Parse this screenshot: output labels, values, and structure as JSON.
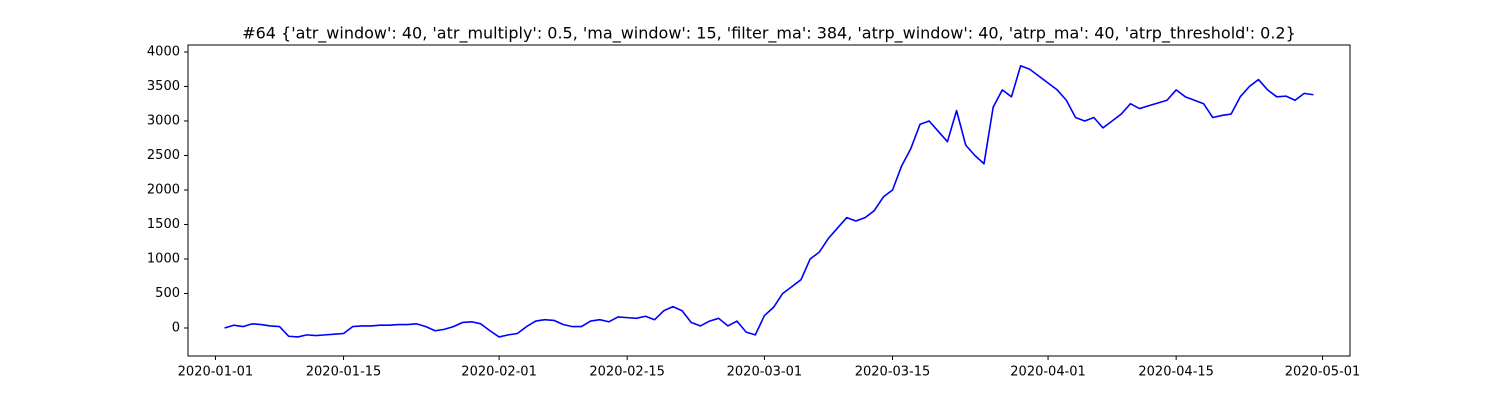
{
  "chart_data": {
    "type": "line",
    "title": "#64 {'atr_window': 40, 'atr_multiply': 0.5, 'ma_window': 15, 'filter_ma': 384, 'atrp_window': 40, 'atrp_ma': 40, 'atrp_threshold': 0.2}",
    "color": "#0000ff",
    "x": [
      "2020-01-02",
      "2020-01-03",
      "2020-01-04",
      "2020-01-05",
      "2020-01-06",
      "2020-01-07",
      "2020-01-08",
      "2020-01-09",
      "2020-01-10",
      "2020-01-11",
      "2020-01-12",
      "2020-01-13",
      "2020-01-14",
      "2020-01-15",
      "2020-01-16",
      "2020-01-17",
      "2020-01-18",
      "2020-01-19",
      "2020-01-20",
      "2020-01-21",
      "2020-01-22",
      "2020-01-23",
      "2020-01-24",
      "2020-01-25",
      "2020-01-26",
      "2020-01-27",
      "2020-01-28",
      "2020-01-29",
      "2020-01-30",
      "2020-01-31",
      "2020-02-01",
      "2020-02-02",
      "2020-02-03",
      "2020-02-04",
      "2020-02-05",
      "2020-02-06",
      "2020-02-07",
      "2020-02-08",
      "2020-02-09",
      "2020-02-10",
      "2020-02-11",
      "2020-02-12",
      "2020-02-13",
      "2020-02-14",
      "2020-02-15",
      "2020-02-16",
      "2020-02-17",
      "2020-02-18",
      "2020-02-19",
      "2020-02-20",
      "2020-02-21",
      "2020-02-22",
      "2020-02-23",
      "2020-02-24",
      "2020-02-25",
      "2020-02-26",
      "2020-02-27",
      "2020-02-28",
      "2020-02-29",
      "2020-03-01",
      "2020-03-02",
      "2020-03-03",
      "2020-03-04",
      "2020-03-05",
      "2020-03-06",
      "2020-03-07",
      "2020-03-08",
      "2020-03-09",
      "2020-03-10",
      "2020-03-11",
      "2020-03-12",
      "2020-03-13",
      "2020-03-14",
      "2020-03-15",
      "2020-03-16",
      "2020-03-17",
      "2020-03-18",
      "2020-03-19",
      "2020-03-20",
      "2020-03-21",
      "2020-03-22",
      "2020-03-23",
      "2020-03-24",
      "2020-03-25",
      "2020-03-26",
      "2020-03-27",
      "2020-03-28",
      "2020-03-29",
      "2020-03-30",
      "2020-03-31",
      "2020-04-01",
      "2020-04-02",
      "2020-04-03",
      "2020-04-04",
      "2020-04-05",
      "2020-04-06",
      "2020-04-07",
      "2020-04-08",
      "2020-04-09",
      "2020-04-10",
      "2020-04-11",
      "2020-04-12",
      "2020-04-13",
      "2020-04-14",
      "2020-04-15",
      "2020-04-16",
      "2020-04-17",
      "2020-04-18",
      "2020-04-19",
      "2020-04-20",
      "2020-04-21",
      "2020-04-22",
      "2020-04-23",
      "2020-04-24",
      "2020-04-25",
      "2020-04-26",
      "2020-04-27",
      "2020-04-28",
      "2020-04-29",
      "2020-04-30"
    ],
    "values": [
      0,
      40,
      20,
      60,
      50,
      30,
      20,
      -120,
      -130,
      -100,
      -110,
      -100,
      -90,
      -80,
      20,
      30,
      30,
      40,
      40,
      50,
      50,
      60,
      20,
      -40,
      -20,
      20,
      80,
      90,
      60,
      -40,
      -130,
      -100,
      -80,
      20,
      100,
      120,
      110,
      50,
      20,
      20,
      100,
      120,
      90,
      160,
      150,
      140,
      170,
      120,
      250,
      310,
      250,
      80,
      30,
      100,
      140,
      30,
      100,
      -60,
      -100,
      180,
      300,
      500,
      600,
      700,
      1000,
      1100,
      1300,
      1450,
      1600,
      1550,
      1600,
      1700,
      1900,
      2000,
      2350,
      2600,
      2950,
      3000,
      2850,
      2700,
      3150,
      2650,
      2500,
      2380,
      3200,
      3450,
      3350,
      3800,
      3750,
      3650,
      3550,
      3450,
      3300,
      3050,
      3000,
      3050,
      2900,
      3000,
      3100,
      3250,
      3180,
      3220,
      3260,
      3300,
      3450,
      3350,
      3300,
      3250,
      3050,
      3080,
      3100,
      3350,
      3500,
      3600,
      3450,
      3350,
      3360,
      3300,
      3400,
      3380
    ],
    "xlim": [
      "2019-12-29",
      "2020-05-04"
    ],
    "ylim": [
      -406,
      4101
    ],
    "xticks": [
      "2020-01-01",
      "2020-01-15",
      "2020-02-01",
      "2020-02-15",
      "2020-03-01",
      "2020-03-15",
      "2020-04-01",
      "2020-04-15",
      "2020-05-01"
    ],
    "yticks": [
      0,
      500,
      1000,
      1500,
      2000,
      2500,
      3000,
      3500,
      4000
    ]
  }
}
